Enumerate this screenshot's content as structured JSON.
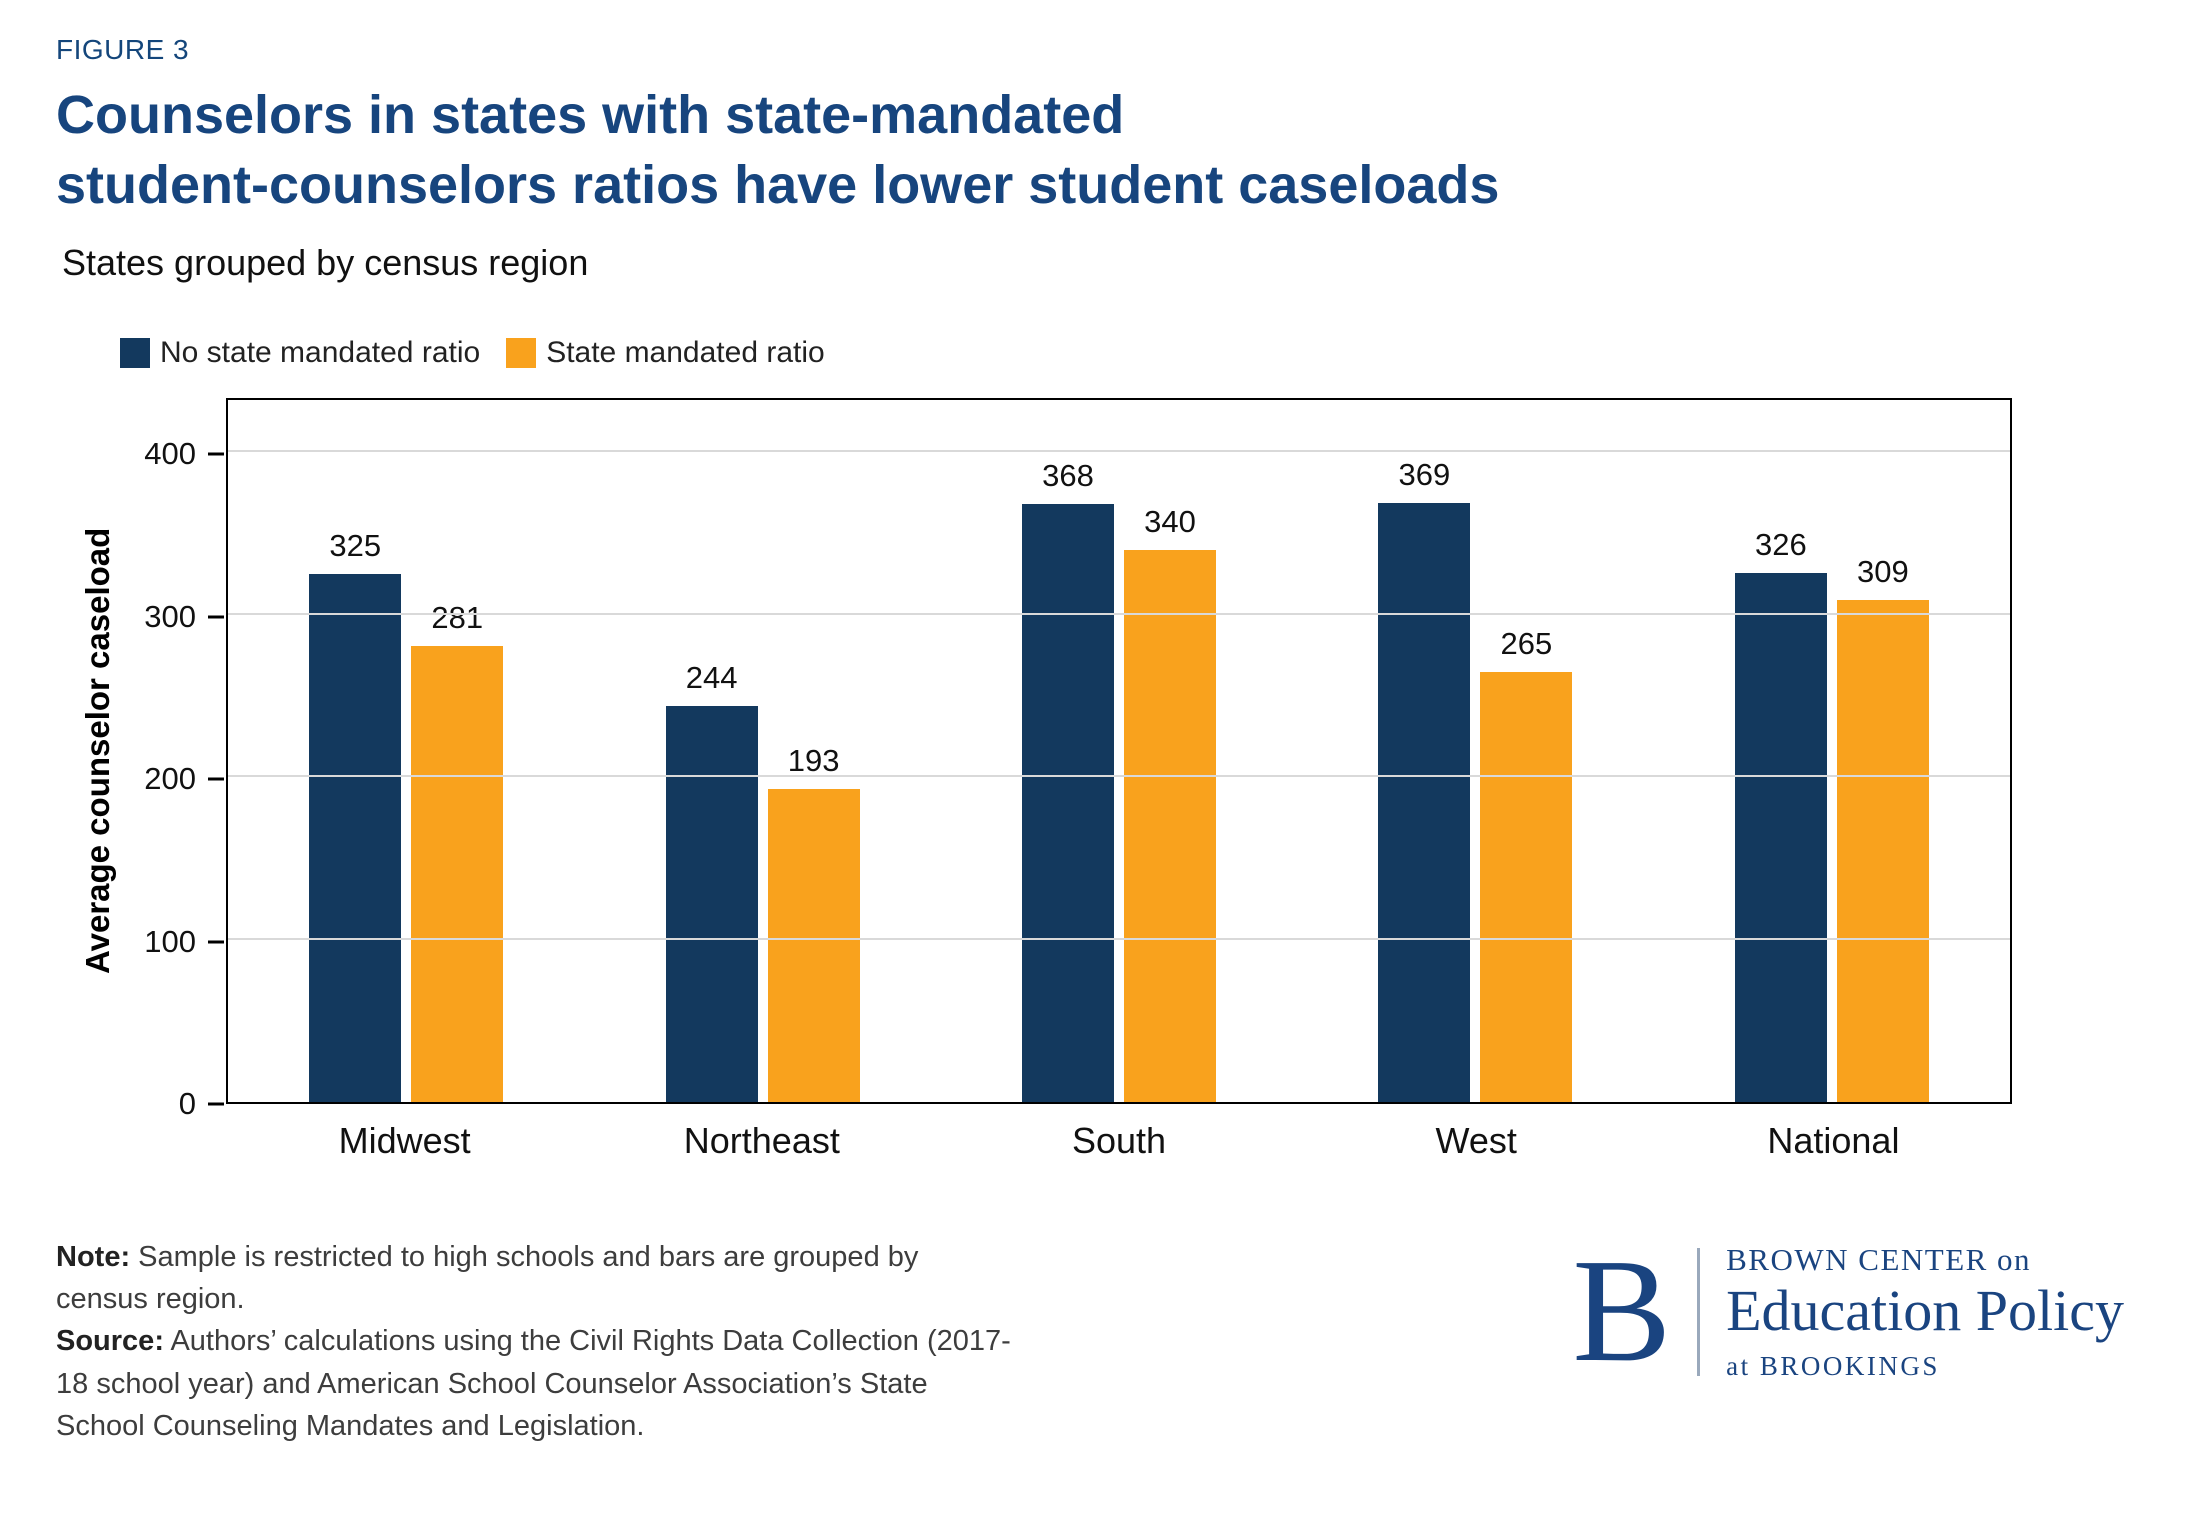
{
  "figure_label": "FIGURE 3",
  "title": {
    "line1": "Counselors in states with state-mandated",
    "line2": "student-counselors ratios have lower student caseloads"
  },
  "subtitle": "States grouped by census region",
  "legend": [
    {
      "label": "No state mandated ratio",
      "color": "#13395e"
    },
    {
      "label": "State mandated ratio",
      "color": "#f9a21d"
    }
  ],
  "chart_data": {
    "type": "bar",
    "categories": [
      "Midwest",
      "Northeast",
      "South",
      "West",
      "National"
    ],
    "series": [
      {
        "name": "No state mandated ratio",
        "color": "#13395e",
        "values": [
          325,
          244,
          368,
          369,
          326
        ]
      },
      {
        "name": "State mandated ratio",
        "color": "#f9a21d",
        "values": [
          281,
          193,
          340,
          265,
          309
        ]
      }
    ],
    "title": "Counselors in states with state-mandated student-counselors ratios have lower student caseloads",
    "xlabel": "",
    "ylabel": "Average counselor caseload",
    "ylim": [
      0,
      400
    ],
    "yticks": [
      0,
      100,
      200,
      300,
      400
    ],
    "grid": "horizontal",
    "legend_position": "top-left",
    "gridline_color": "#d9d9d9"
  },
  "note": {
    "label": "Note:",
    "text": " Sample is restricted to high schools and bars are grouped by census region."
  },
  "source": {
    "label": "Source:",
    "text": " Authors’ calculations using the Civil Rights Data Collection (2017-18 school year) and American School Counselor Association’s State School Counseling Mandates and Legislation."
  },
  "logo": {
    "letter": "B",
    "line1": "BROWN CENTER on",
    "line2": "Education Policy",
    "line3": "at BROOKINGS"
  }
}
